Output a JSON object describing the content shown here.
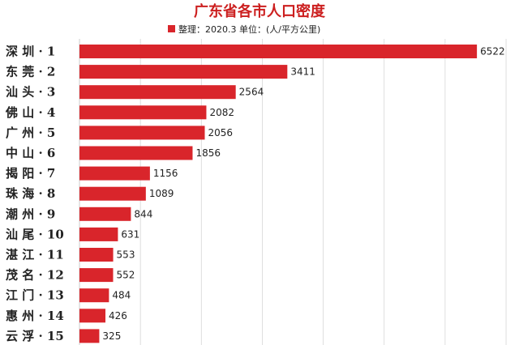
{
  "chart_data": {
    "type": "bar",
    "orientation": "horizontal",
    "title": "广东省各市人口密度",
    "legend": {
      "label": "整理：2020.3  单位：(人/平方公里)",
      "placement": "top"
    },
    "categories": [
      "深 圳 · 1",
      "东 莞 · 2",
      "汕 头 · 3",
      "佛 山 · 4",
      "广 州 · 5",
      "中 山 · 6",
      "揭 阳 · 7",
      "珠 海 · 8",
      "潮 州 · 9",
      "汕 尾 · 10",
      "湛 江 · 11",
      "茂 名 · 12",
      "江 门 · 13",
      "惠 州 · 14",
      "云 浮 · 15"
    ],
    "values": [
      6522,
      3411,
      2564,
      2082,
      2056,
      1856,
      1156,
      1089,
      844,
      631,
      553,
      552,
      484,
      426,
      325
    ],
    "xlim": [
      0,
      7000
    ],
    "grid": true,
    "colors": {
      "bar": "#d9252b",
      "title": "#cc1f1f",
      "grid": "#d6d6d6",
      "label": "#222222"
    }
  }
}
